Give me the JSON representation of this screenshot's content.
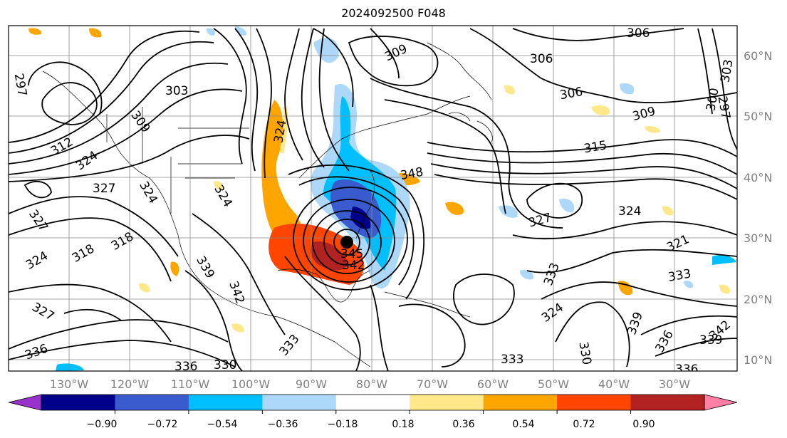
{
  "title": "2024092500 F048",
  "lon_labels": [
    "130°W",
    "120°W",
    "110°W",
    "100°W",
    "90°W",
    "80°W",
    "70°W",
    "60°W",
    "50°W",
    "40°W",
    "30°W"
  ],
  "lat_labels": [
    "60°N",
    "50°N",
    "40°N",
    "30°N",
    "20°N",
    "10°N"
  ],
  "colorbar": {
    "ticks": [
      "−0.90",
      "−0.72",
      "−0.54",
      "−0.36",
      "−0.18",
      "0.18",
      "0.36",
      "0.54",
      "0.72",
      "0.90"
    ],
    "colors": [
      "#9932cc",
      "#00008b",
      "#3a5bcd",
      "#00bfff",
      "#add8f9",
      "#ffffff",
      "#ffe88a",
      "#ffa500",
      "#ff4500",
      "#b22222",
      "#ff7fa7"
    ]
  },
  "contour_labels": [
    "297",
    "306",
    "306",
    "306",
    "303",
    "309",
    "309",
    "309",
    "315",
    "312",
    "324",
    "324",
    "327",
    "324",
    "327",
    "318",
    "318",
    "324",
    "339",
    "342",
    "333",
    "330",
    "336",
    "336",
    "333",
    "333",
    "327",
    "324",
    "321",
    "324",
    "333",
    "327",
    "324",
    "330",
    "339",
    "336",
    "342",
    "339",
    "336",
    "303",
    "300",
    "297",
    "345",
    "342",
    "348"
  ]
}
